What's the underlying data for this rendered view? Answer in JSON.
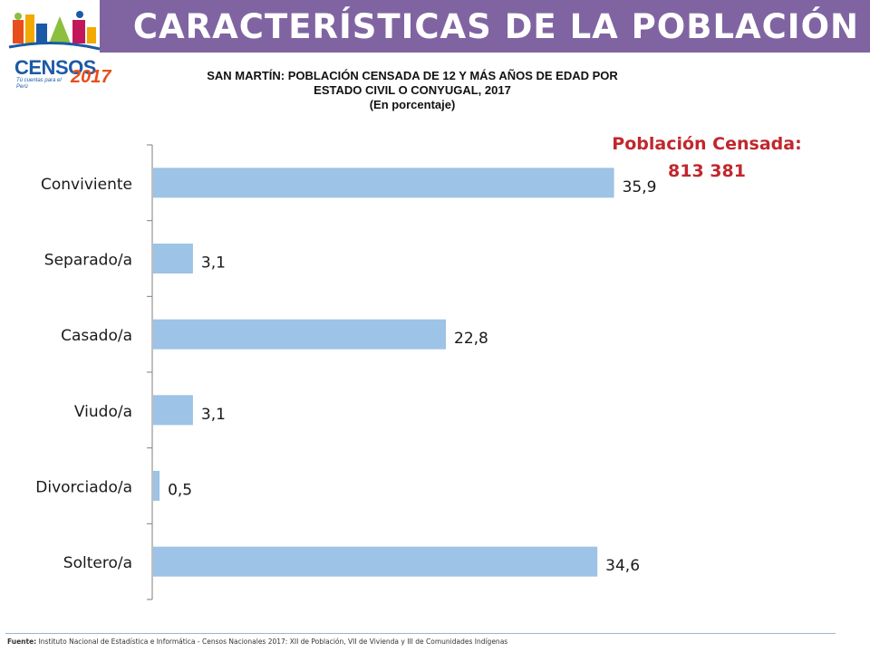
{
  "header": {
    "title": "CARACTERÍSTICAS DE LA POBLACIÓN",
    "band_color": "#8064a2"
  },
  "logo": {
    "word": "CENSOS",
    "year": "2017",
    "tagline": "Tú cuentas para el Perú"
  },
  "chart_title": {
    "line1": "SAN MARTÍN: POBLACIÓN CENSADA DE 12 Y MÁS AÑOS DE EDAD POR",
    "line2": "ESTADO CIVIL O CONYUGAL, 2017",
    "line3": "(En porcentaje)"
  },
  "population_box": {
    "label": "Población Censada:",
    "value": "813 381"
  },
  "chart_data": {
    "type": "bar",
    "orientation": "horizontal",
    "categories": [
      "Conviviente",
      "Separado/a",
      "Casado/a",
      "Viudo/a",
      "Divorciado/a",
      "Soltero/a"
    ],
    "values": [
      35.9,
      3.1,
      22.8,
      3.1,
      0.5,
      34.6
    ],
    "value_labels": [
      "35,9",
      "3,1",
      "22,8",
      "3,1",
      "0,5",
      "34,6"
    ],
    "title": "SAN MARTÍN: POBLACIÓN CENSADA DE 12 Y MÁS AÑOS DE EDAD POR ESTADO CIVIL O CONYUGAL, 2017",
    "subtitle": "(En porcentaje)",
    "xlim": [
      0,
      36
    ],
    "bar_color": "#9dc3e6",
    "grid": false,
    "legend": "none"
  },
  "footer": {
    "source_label": "Fuente:",
    "source_text": "Instituto Nacional de Estadística e Informática - Censos Nacionales 2017: XII de Población, VII de Vivienda y III de Comunidades Indígenas"
  }
}
